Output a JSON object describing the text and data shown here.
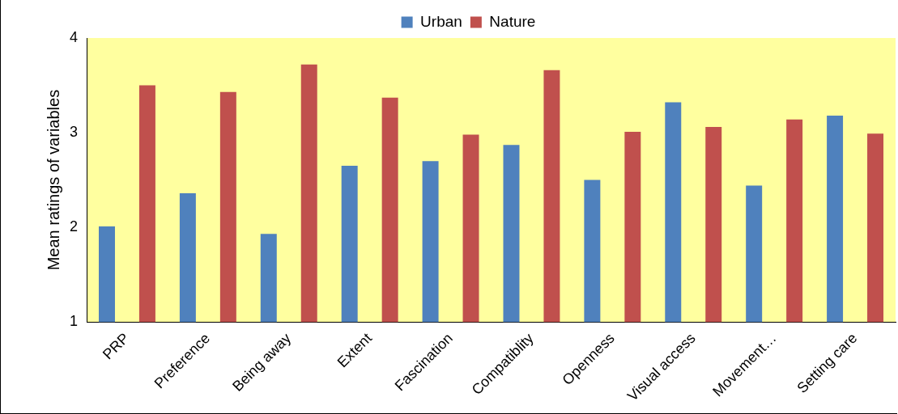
{
  "chart_data": {
    "type": "bar",
    "ylabel": "Mean ratings of variables",
    "categories": [
      "PRP",
      "Preference",
      "Being away",
      "Extent",
      "Fascination",
      "Compatiblity",
      "Openness",
      "Visual access",
      "Movement…",
      "Setting care"
    ],
    "series": [
      {
        "name": "Urban",
        "color": "#4f81bd",
        "values": [
          2.01,
          2.36,
          1.93,
          2.65,
          2.7,
          2.87,
          2.5,
          3.32,
          2.44,
          3.18
        ]
      },
      {
        "name": "Nature",
        "color": "#c0504d",
        "values": [
          3.5,
          3.43,
          3.72,
          3.37,
          2.98,
          3.66,
          3.01,
          3.06,
          3.14,
          2.99
        ]
      }
    ],
    "ylim": [
      1,
      4
    ],
    "yticks": [
      1,
      2,
      3,
      4
    ],
    "grid": false,
    "legend": "top"
  }
}
